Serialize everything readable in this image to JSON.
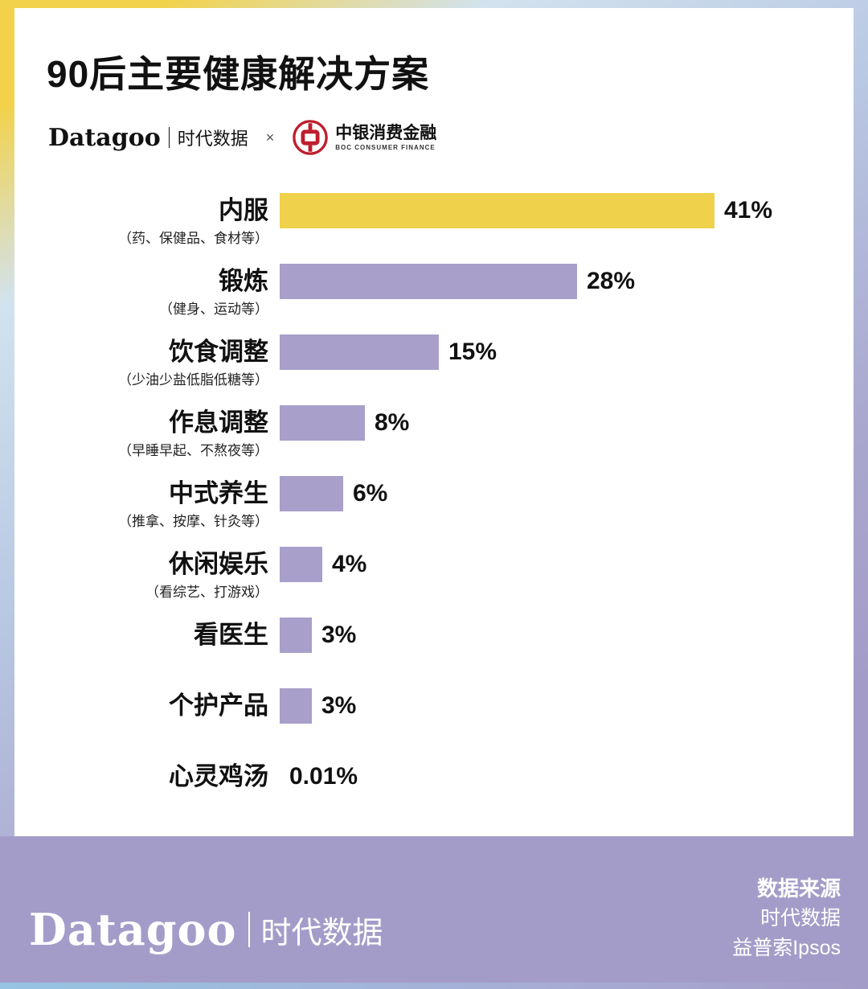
{
  "header": {
    "title": "90后主要健康解决方案",
    "brand": "Datagoo",
    "brand_suffix": "时代数据",
    "cross": "×",
    "partner_name": "中银消费金融",
    "partner_sub": "BOC CONSUMER FINANCE"
  },
  "chart_data": {
    "type": "bar",
    "orientation": "horizontal",
    "title": "90后主要健康解决方案",
    "categories": [
      "内服",
      "锻炼",
      "饮食调整",
      "作息调整",
      "中式养生",
      "休闲娱乐",
      "看医生",
      "个护产品",
      "心灵鸡汤"
    ],
    "sublabels": [
      "（药、保健品、食材等）",
      "（健身、运动等）",
      "（少油少盐低脂低糖等）",
      "（早睡早起、不熬夜等）",
      "（推拿、按摩、针灸等）",
      "（看综艺、打游戏）",
      "",
      "",
      ""
    ],
    "values": [
      41,
      28,
      15,
      8,
      6,
      4,
      3,
      3,
      0.01
    ],
    "value_labels": [
      "41%",
      "28%",
      "15%",
      "8%",
      "6%",
      "4%",
      "3%",
      "3%",
      "0.01%"
    ],
    "unit": "%",
    "xlim": [
      0,
      45
    ],
    "grid": false,
    "legend": null,
    "highlight_index": 0,
    "highlight_color": "#f0d14b",
    "bar_color": "#a89fca"
  },
  "footer": {
    "brand": "Datagoo",
    "brand_suffix": "时代数据",
    "source_label": "数据来源",
    "source_lines": [
      "时代数据",
      "益普索Ipsos"
    ]
  },
  "colors": {
    "accent_yellow": "#f0d14b",
    "accent_purple": "#a89fca",
    "footer_band": "#a49cc8",
    "boc_red": "#be1e2d",
    "card_bg": "#ffffff"
  }
}
